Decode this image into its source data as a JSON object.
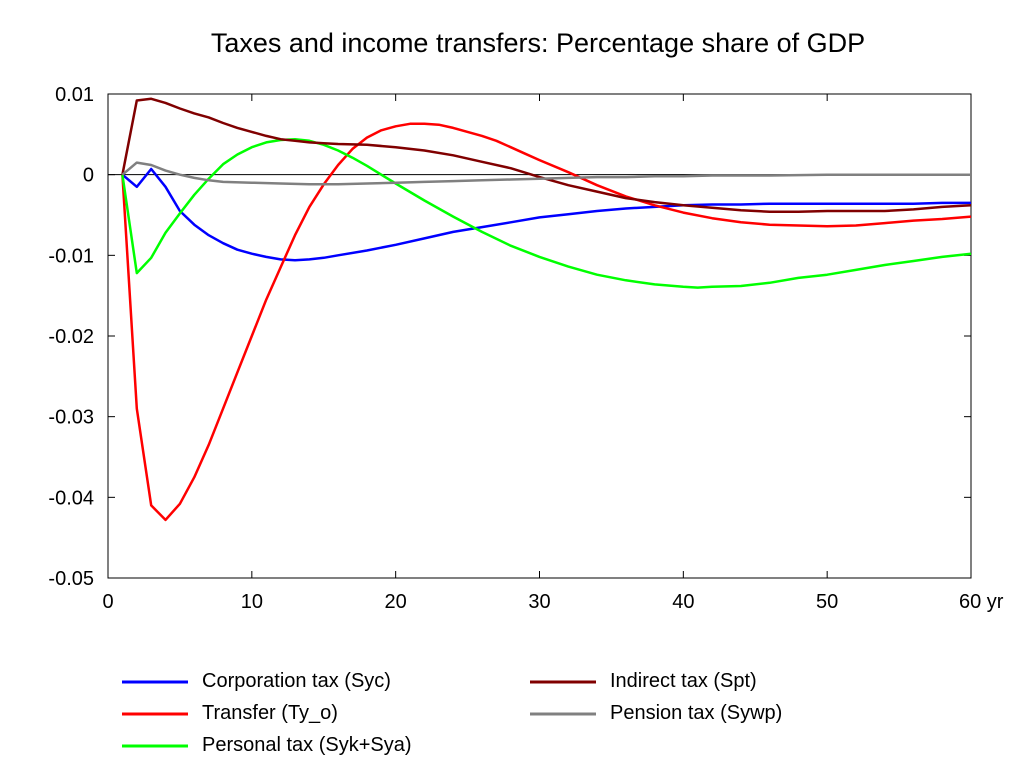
{
  "chart_data": {
    "type": "line",
    "title": "Taxes and income transfers: Percentage share of GDP",
    "xlabel": "",
    "ylabel": "",
    "x_unit": "yr",
    "xlim": [
      0,
      60
    ],
    "ylim": [
      -0.05,
      0.01
    ],
    "x_ticks": [
      0,
      10,
      20,
      30,
      40,
      50,
      60
    ],
    "x_tick_labels": [
      "0",
      "10",
      "20",
      "30",
      "40",
      "50",
      "60 yr"
    ],
    "y_ticks": [
      0.01,
      0,
      -0.01,
      -0.02,
      -0.03,
      -0.04,
      -0.05
    ],
    "y_tick_labels": [
      "0.01",
      "0",
      "-0.01",
      "-0.02",
      "-0.03",
      "-0.04",
      "-0.05"
    ],
    "grid": false,
    "zero_line": true,
    "legend_position": "bottom",
    "series": [
      {
        "name": "Corporation tax (Syc)",
        "color": "#0000ff",
        "points": [
          [
            1,
            0
          ],
          [
            2,
            -0.0015
          ],
          [
            3,
            0.0007
          ],
          [
            4,
            -0.0015
          ],
          [
            5,
            -0.0045
          ],
          [
            6,
            -0.0062
          ],
          [
            7,
            -0.0075
          ],
          [
            8,
            -0.0085
          ],
          [
            9,
            -0.0093
          ],
          [
            10,
            -0.0098
          ],
          [
            11,
            -0.0102
          ],
          [
            12,
            -0.0105
          ],
          [
            13,
            -0.0106
          ],
          [
            14,
            -0.0105
          ],
          [
            15,
            -0.0103
          ],
          [
            16,
            -0.01
          ],
          [
            18,
            -0.0094
          ],
          [
            20,
            -0.0087
          ],
          [
            22,
            -0.0079
          ],
          [
            24,
            -0.0071
          ],
          [
            26,
            -0.0065
          ],
          [
            28,
            -0.0059
          ],
          [
            30,
            -0.0053
          ],
          [
            32,
            -0.0049
          ],
          [
            34,
            -0.0045
          ],
          [
            36,
            -0.0042
          ],
          [
            38,
            -0.004
          ],
          [
            40,
            -0.0038
          ],
          [
            42,
            -0.0037
          ],
          [
            44,
            -0.0037
          ],
          [
            46,
            -0.0036
          ],
          [
            48,
            -0.0036
          ],
          [
            50,
            -0.0036
          ],
          [
            52,
            -0.0036
          ],
          [
            54,
            -0.0036
          ],
          [
            56,
            -0.0036
          ],
          [
            58,
            -0.0035
          ],
          [
            60,
            -0.0035
          ]
        ]
      },
      {
        "name": "Transfer (Ty_o)",
        "color": "#ff0000",
        "points": [
          [
            1,
            0
          ],
          [
            2,
            -0.029
          ],
          [
            3,
            -0.041
          ],
          [
            4,
            -0.0428
          ],
          [
            5,
            -0.0408
          ],
          [
            6,
            -0.0375
          ],
          [
            7,
            -0.0335
          ],
          [
            8,
            -0.029
          ],
          [
            9,
            -0.0245
          ],
          [
            10,
            -0.02
          ],
          [
            11,
            -0.0155
          ],
          [
            12,
            -0.0115
          ],
          [
            13,
            -0.0075
          ],
          [
            14,
            -0.004
          ],
          [
            15,
            -0.0012
          ],
          [
            16,
            0.0012
          ],
          [
            17,
            0.0032
          ],
          [
            18,
            0.0046
          ],
          [
            19,
            0.0055
          ],
          [
            20,
            0.006
          ],
          [
            21,
            0.0063
          ],
          [
            22,
            0.0063
          ],
          [
            23,
            0.0062
          ],
          [
            24,
            0.0058
          ],
          [
            25,
            0.0053
          ],
          [
            26,
            0.0048
          ],
          [
            27,
            0.0042
          ],
          [
            28,
            0.0034
          ],
          [
            29,
            0.0026
          ],
          [
            30,
            0.0018
          ],
          [
            32,
            0.0003
          ],
          [
            34,
            -0.0013
          ],
          [
            36,
            -0.0027
          ],
          [
            38,
            -0.0038
          ],
          [
            40,
            -0.0047
          ],
          [
            42,
            -0.0054
          ],
          [
            44,
            -0.0059
          ],
          [
            46,
            -0.0062
          ],
          [
            48,
            -0.0063
          ],
          [
            50,
            -0.0064
          ],
          [
            52,
            -0.0063
          ],
          [
            54,
            -0.006
          ],
          [
            56,
            -0.0057
          ],
          [
            58,
            -0.0055
          ],
          [
            60,
            -0.0052
          ]
        ]
      },
      {
        "name": "Personal tax (Syk+Sya)",
        "color": "#00ff00",
        "points": [
          [
            1,
            0
          ],
          [
            2,
            -0.0122
          ],
          [
            3,
            -0.0103
          ],
          [
            4,
            -0.0072
          ],
          [
            5,
            -0.0048
          ],
          [
            6,
            -0.0025
          ],
          [
            7,
            -0.0005
          ],
          [
            8,
            0.0013
          ],
          [
            9,
            0.0025
          ],
          [
            10,
            0.0034
          ],
          [
            11,
            0.004
          ],
          [
            12,
            0.0043
          ],
          [
            13,
            0.0044
          ],
          [
            14,
            0.0042
          ],
          [
            15,
            0.0037
          ],
          [
            16,
            0.003
          ],
          [
            17,
            0.0021
          ],
          [
            18,
            0.0011
          ],
          [
            19,
            0
          ],
          [
            20,
            -0.0011
          ],
          [
            22,
            -0.0032
          ],
          [
            24,
            -0.0052
          ],
          [
            26,
            -0.0071
          ],
          [
            28,
            -0.0088
          ],
          [
            30,
            -0.0102
          ],
          [
            32,
            -0.0114
          ],
          [
            34,
            -0.0124
          ],
          [
            36,
            -0.0131
          ],
          [
            38,
            -0.0136
          ],
          [
            40,
            -0.0139
          ],
          [
            41,
            -0.014
          ],
          [
            42,
            -0.0139
          ],
          [
            44,
            -0.0138
          ],
          [
            46,
            -0.0134
          ],
          [
            48,
            -0.0128
          ],
          [
            50,
            -0.0124
          ],
          [
            52,
            -0.0118
          ],
          [
            54,
            -0.0112
          ],
          [
            56,
            -0.0107
          ],
          [
            58,
            -0.0102
          ],
          [
            60,
            -0.0098
          ]
        ]
      },
      {
        "name": "Indirect tax (Spt)",
        "color": "#800000",
        "points": [
          [
            1,
            0
          ],
          [
            2,
            0.0092
          ],
          [
            3,
            0.0094
          ],
          [
            4,
            0.0089
          ],
          [
            5,
            0.0082
          ],
          [
            6,
            0.0076
          ],
          [
            7,
            0.0071
          ],
          [
            8,
            0.0064
          ],
          [
            9,
            0.0058
          ],
          [
            10,
            0.0053
          ],
          [
            11,
            0.0048
          ],
          [
            12,
            0.0044
          ],
          [
            13,
            0.0042
          ],
          [
            14,
            0.004
          ],
          [
            15,
            0.0039
          ],
          [
            16,
            0.0038
          ],
          [
            18,
            0.0037
          ],
          [
            20,
            0.0034
          ],
          [
            22,
            0.003
          ],
          [
            24,
            0.0024
          ],
          [
            26,
            0.0016
          ],
          [
            28,
            0.0008
          ],
          [
            30,
            -0.0003
          ],
          [
            32,
            -0.0013
          ],
          [
            34,
            -0.0021
          ],
          [
            36,
            -0.0029
          ],
          [
            38,
            -0.0034
          ],
          [
            40,
            -0.0038
          ],
          [
            42,
            -0.0041
          ],
          [
            44,
            -0.0044
          ],
          [
            46,
            -0.0046
          ],
          [
            48,
            -0.0046
          ],
          [
            50,
            -0.0045
          ],
          [
            52,
            -0.0045
          ],
          [
            54,
            -0.0045
          ],
          [
            56,
            -0.0043
          ],
          [
            58,
            -0.004
          ],
          [
            60,
            -0.0038
          ]
        ]
      },
      {
        "name": "Pension tax (Sywp)",
        "color": "#808080",
        "points": [
          [
            1,
            0
          ],
          [
            2,
            0.0015
          ],
          [
            3,
            0.0012
          ],
          [
            4,
            0.0005
          ],
          [
            5,
            0
          ],
          [
            6,
            -0.0004
          ],
          [
            7,
            -0.0007
          ],
          [
            8,
            -0.0009
          ],
          [
            10,
            -0.001
          ],
          [
            12,
            -0.0011
          ],
          [
            14,
            -0.0012
          ],
          [
            16,
            -0.0012
          ],
          [
            18,
            -0.0011
          ],
          [
            20,
            -0.001
          ],
          [
            22,
            -0.0009
          ],
          [
            24,
            -0.0008
          ],
          [
            26,
            -0.0007
          ],
          [
            28,
            -0.0006
          ],
          [
            30,
            -0.0005
          ],
          [
            32,
            -0.0004
          ],
          [
            34,
            -0.0003
          ],
          [
            36,
            -0.0003
          ],
          [
            38,
            -0.0002
          ],
          [
            40,
            -0.0002
          ],
          [
            42,
            -0.0001
          ],
          [
            44,
            -0.0001
          ],
          [
            46,
            -0.0001
          ],
          [
            50,
            0
          ],
          [
            54,
            0
          ],
          [
            58,
            0
          ],
          [
            60,
            0
          ]
        ]
      }
    ]
  }
}
